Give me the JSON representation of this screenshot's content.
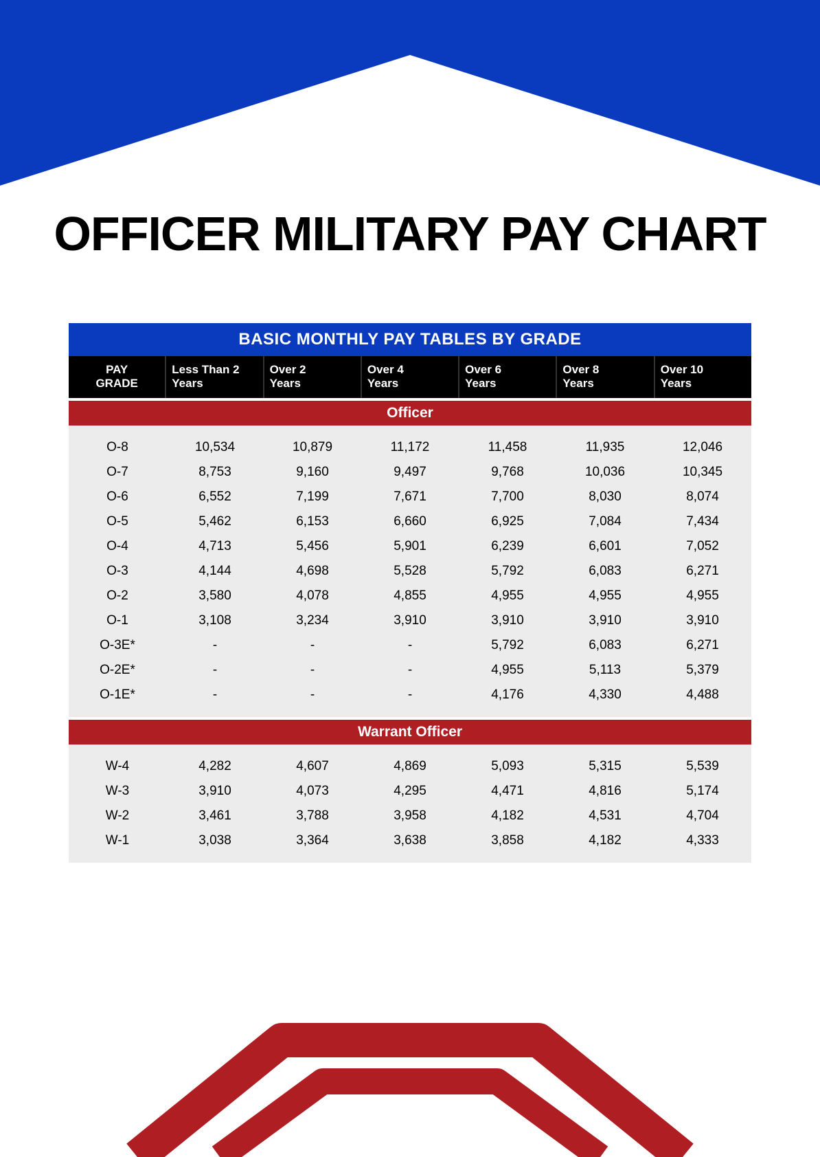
{
  "colors": {
    "banner_blue": "#0a3bbf",
    "header_black": "#000000",
    "section_red": "#af1e22",
    "body_gray": "#ececec",
    "text": "#000000",
    "white": "#ffffff"
  },
  "title": "OFFICER MILITARY PAY CHART",
  "table": {
    "title": "BASIC MONTHLY PAY TABLES BY GRADE",
    "columns": [
      "PAY GRADE",
      "Less Than 2 Years",
      "Over 2 Years",
      "Over 4 Years",
      "Over 6 Years",
      "Over 8 Years",
      "Over 10 Years"
    ],
    "sections": [
      {
        "label": "Officer",
        "rows": [
          [
            "O-8",
            "10,534",
            "10,879",
            "11,172",
            "11,458",
            "11,935",
            "12,046"
          ],
          [
            "O-7",
            "8,753",
            "9,160",
            "9,497",
            "9,768",
            "10,036",
            "10,345"
          ],
          [
            "O-6",
            "6,552",
            "7,199",
            "7,671",
            "7,700",
            "8,030",
            "8,074"
          ],
          [
            "O-5",
            "5,462",
            "6,153",
            "6,660",
            "6,925",
            "7,084",
            "7,434"
          ],
          [
            "O-4",
            "4,713",
            "5,456",
            "5,901",
            "6,239",
            "6,601",
            "7,052"
          ],
          [
            "O-3",
            "4,144",
            "4,698",
            "5,528",
            "5,792",
            "6,083",
            "6,271"
          ],
          [
            "O-2",
            "3,580",
            "4,078",
            "4,855",
            "4,955",
            "4,955",
            "4,955"
          ],
          [
            "O-1",
            "3,108",
            "3,234",
            "3,910",
            "3,910",
            "3,910",
            "3,910"
          ],
          [
            "O-3E*",
            "-",
            "-",
            "-",
            "5,792",
            "6,083",
            "6,271"
          ],
          [
            "O-2E*",
            "-",
            "-",
            "-",
            "4,955",
            "5,113",
            "5,379"
          ],
          [
            "O-1E*",
            "-",
            "-",
            "-",
            "4,176",
            "4,330",
            "4,488"
          ]
        ]
      },
      {
        "label": "Warrant Officer",
        "rows": [
          [
            "W-4",
            "4,282",
            "4,607",
            "4,869",
            "5,093",
            "5,315",
            "5,539"
          ],
          [
            "W-3",
            "3,910",
            "4,073",
            "4,295",
            "4,471",
            "4,816",
            "5,174"
          ],
          [
            "W-2",
            "3,461",
            "3,788",
            "3,958",
            "4,182",
            "4,531",
            "4,704"
          ],
          [
            "W-1",
            "3,038",
            "3,364",
            "3,638",
            "3,858",
            "4,182",
            "4,333"
          ]
        ]
      }
    ]
  },
  "typography": {
    "title_fontsize": 70,
    "table_title_fontsize": 24,
    "header_fontsize": 17,
    "section_fontsize": 21,
    "cell_fontsize": 19
  }
}
